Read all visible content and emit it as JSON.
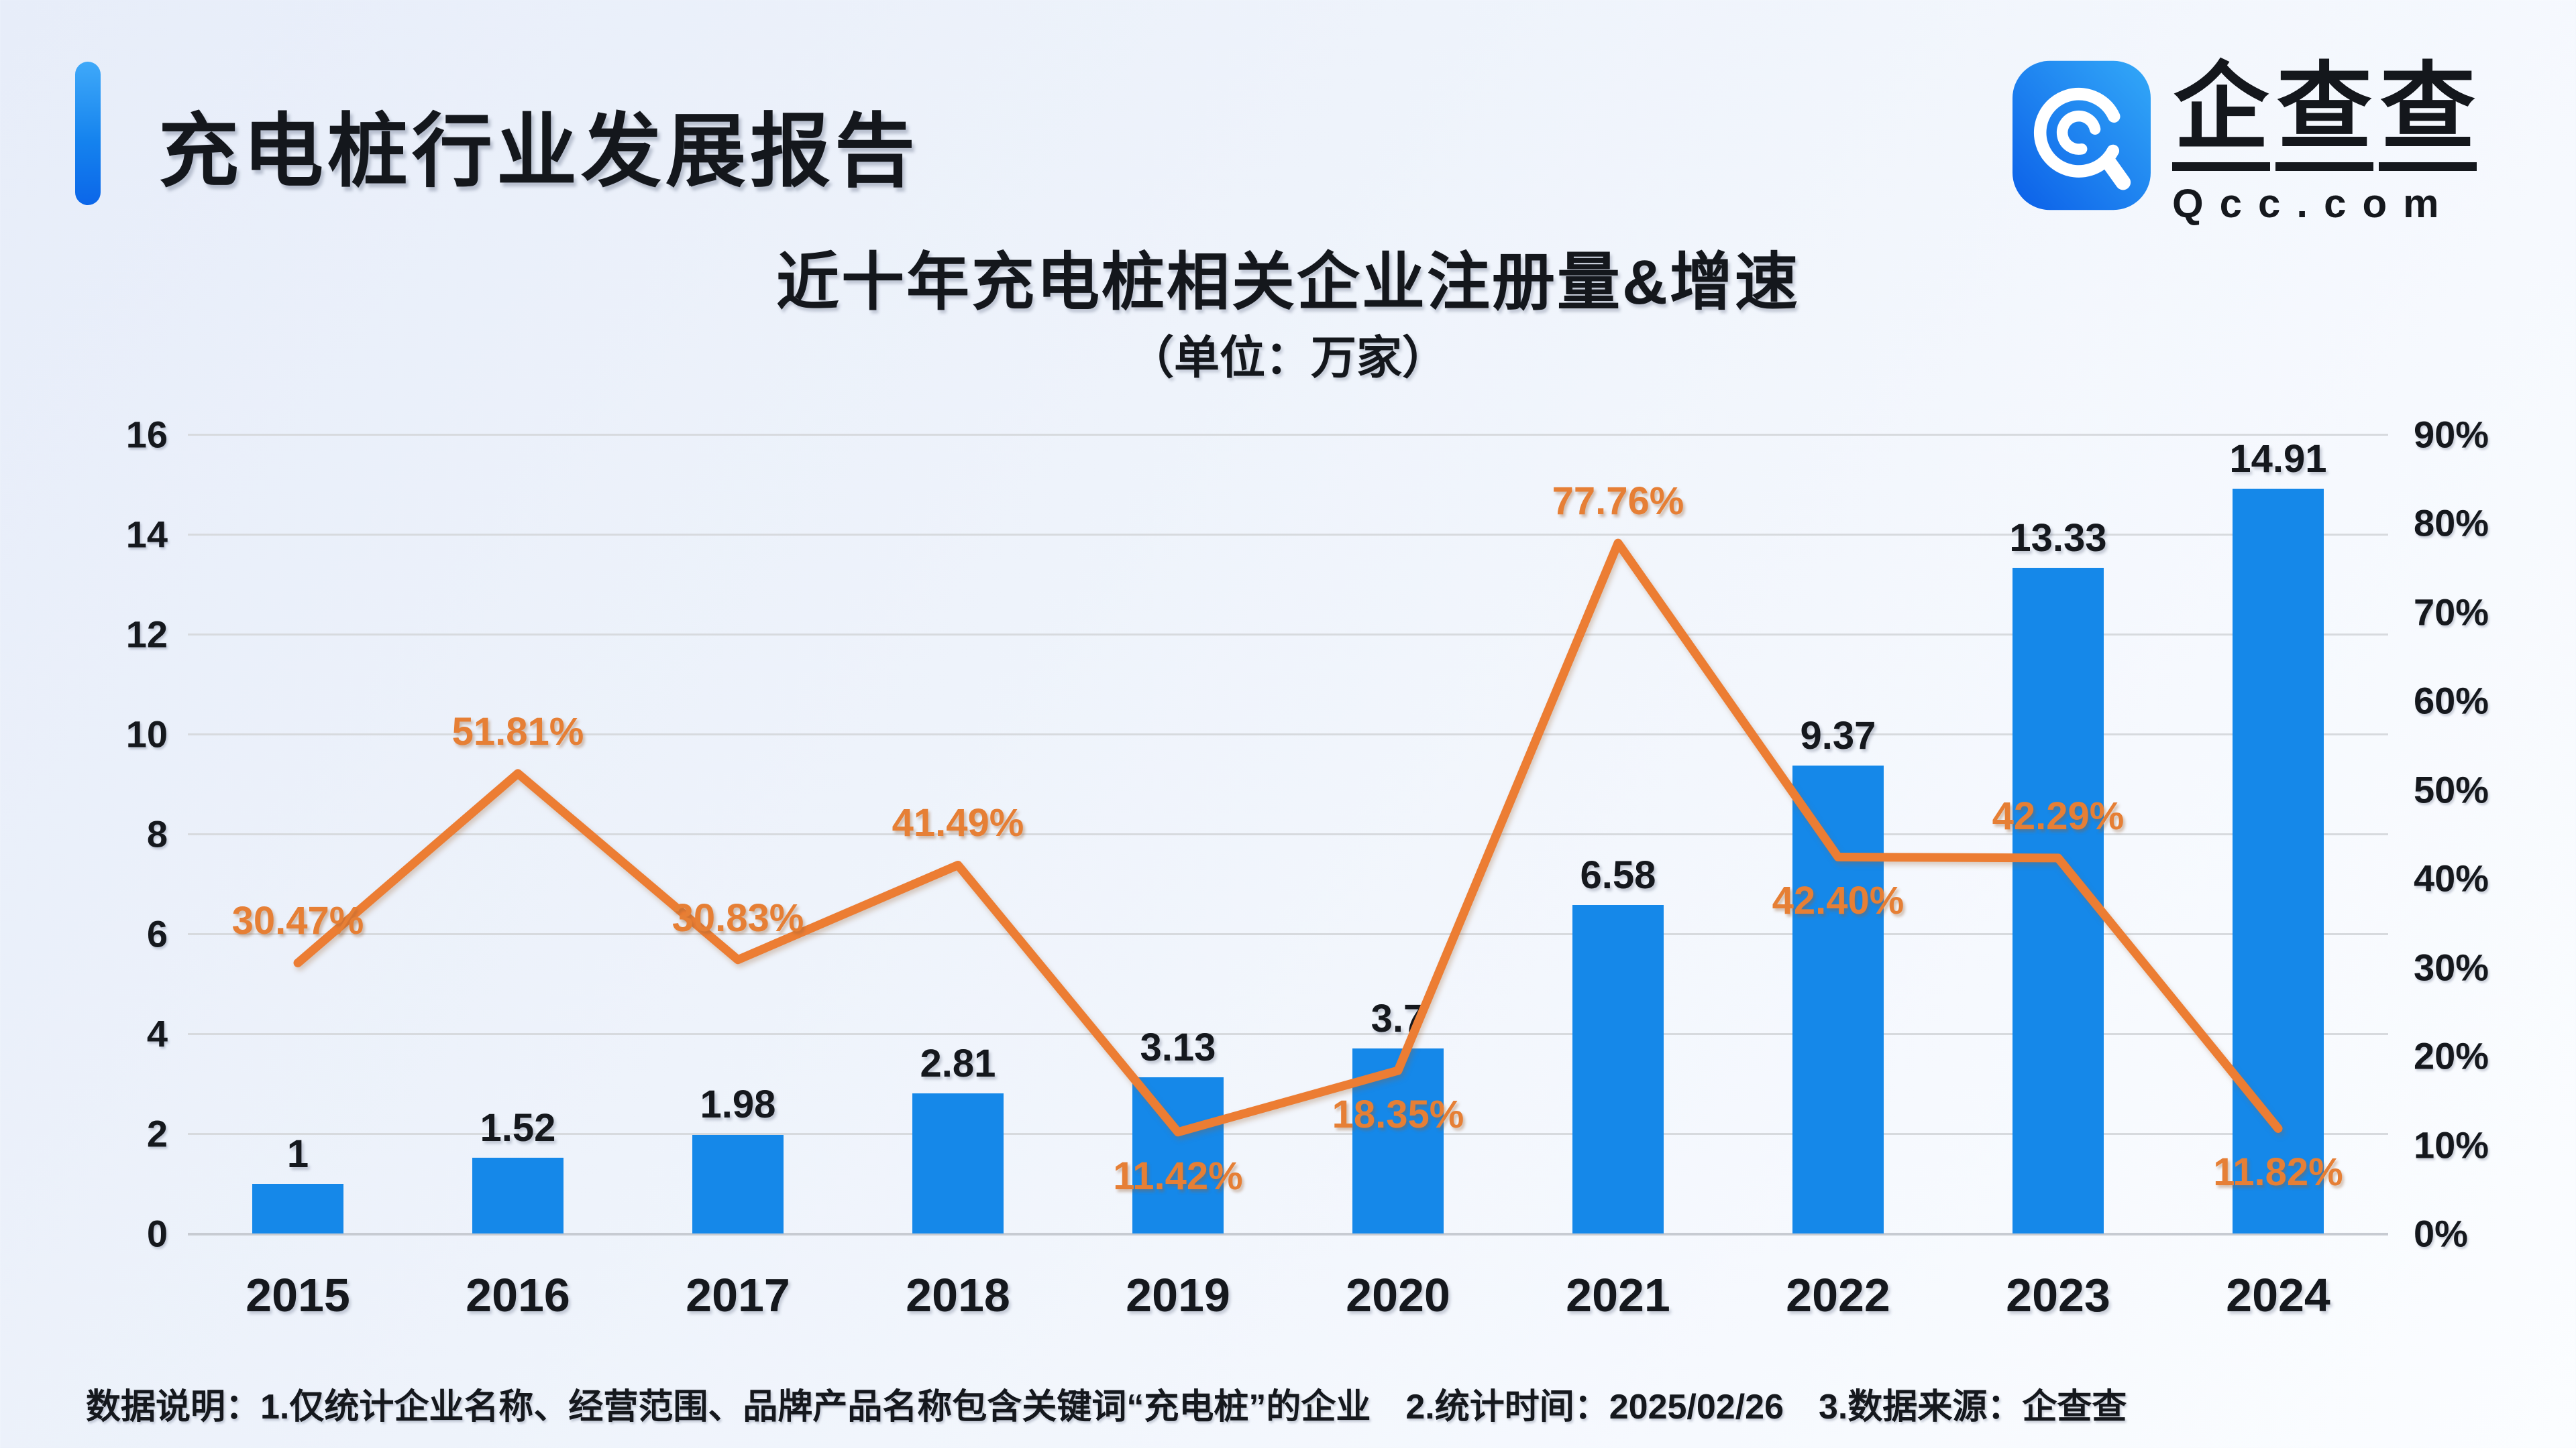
{
  "header": {
    "title": "充电桩行业发展报告"
  },
  "logo": {
    "brand": "企查查",
    "brand_chars": [
      "企",
      "查",
      "查"
    ],
    "domain": "Qcc.com"
  },
  "chart": {
    "title": "近十年充电桩相关企业注册量&增速",
    "subtitle": "（单位：万家）"
  },
  "chart_data": {
    "type": "bar+line",
    "title": "近十年充电桩相关企业注册量&增速",
    "unit": "万家",
    "categories": [
      "2015",
      "2016",
      "2017",
      "2018",
      "2019",
      "2020",
      "2021",
      "2022",
      "2023",
      "2024"
    ],
    "series": [
      {
        "name": "注册量（万家）",
        "type": "bar",
        "color": "#1588e9",
        "values": [
          1,
          1.52,
          1.98,
          2.81,
          3.13,
          3.7,
          6.58,
          9.37,
          13.33,
          14.91
        ],
        "labels": [
          "1",
          "1.52",
          "1.98",
          "2.81",
          "3.13",
          "3.7",
          "6.58",
          "9.37",
          "13.33",
          "14.91"
        ]
      },
      {
        "name": "增速",
        "type": "line",
        "color": "#ec7d33",
        "values": [
          30.47,
          51.81,
          30.83,
          41.49,
          11.42,
          18.35,
          77.76,
          42.4,
          42.29,
          11.82
        ],
        "labels": [
          "30.47%",
          "51.81%",
          "30.83%",
          "41.49%",
          "11.42%",
          "18.35%",
          "77.76%",
          "42.40%",
          "42.29%",
          "11.82%"
        ],
        "label_position": [
          "above",
          "above",
          "above",
          "above",
          "below",
          "below",
          "above",
          "below",
          "above",
          "below"
        ]
      }
    ],
    "left_axis": {
      "min": 0,
      "max": 16,
      "step": 2,
      "ticks": [
        "0",
        "2",
        "4",
        "6",
        "8",
        "10",
        "12",
        "14",
        "16"
      ]
    },
    "right_axis": {
      "min": 0,
      "max": 90,
      "step": 10,
      "ticks": [
        "0%",
        "10%",
        "20%",
        "30%",
        "40%",
        "50%",
        "60%",
        "70%",
        "80%",
        "90%"
      ]
    },
    "grid": true,
    "legend": false
  },
  "footer": {
    "note": "数据说明：1.仅统计企业名称、经营范围、品牌产品名称包含关键词“充电桩”的企业　2.统计时间：2025/02/26　3.数据来源：企查查"
  },
  "colors": {
    "bar": "#1588e9",
    "line": "#ec7d33",
    "accent": "#1583ee"
  }
}
